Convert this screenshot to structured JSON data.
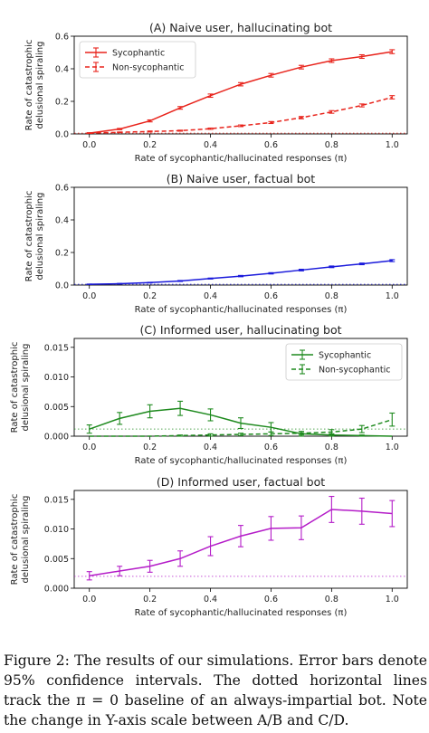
{
  "figure": {
    "caption": "Figure 2: The results of our simulations. Error bars denote 95% confidence intervals. The dotted horizontal lines track the π = 0 baseline of an always-impartial bot. Note the change in Y-axis scale between A/B and C/D."
  },
  "chart_data": [
    {
      "id": "A",
      "type": "line",
      "title": "(A) Naive user, hallucinating bot",
      "xlabel": "Rate of sycophantic/hallucinated responses (π)",
      "ylabel": "Rate of catastrophic delusional spiraling",
      "x": [
        0.0,
        0.1,
        0.2,
        0.3,
        0.4,
        0.5,
        0.6,
        0.7,
        0.8,
        0.9,
        1.0
      ],
      "xlim": [
        -0.05,
        1.05
      ],
      "ylim": [
        0,
        0.6
      ],
      "xticks": [
        "0.0",
        "0.2",
        "0.4",
        "0.6",
        "0.8",
        "1.0"
      ],
      "yticks": [
        "0.0",
        "0.2",
        "0.4",
        "0.6"
      ],
      "baseline": 0.005,
      "legend": "top-left",
      "series": [
        {
          "name": "Sycophantic",
          "color": "#e8231b",
          "dash": "solid",
          "values": [
            0.005,
            0.03,
            0.08,
            0.16,
            0.235,
            0.305,
            0.36,
            0.41,
            0.45,
            0.475,
            0.505
          ],
          "err": [
            0.002,
            0.004,
            0.006,
            0.008,
            0.01,
            0.01,
            0.011,
            0.011,
            0.011,
            0.011,
            0.012
          ]
        },
        {
          "name": "Non-sycophantic",
          "color": "#e8231b",
          "dash": "dashed",
          "values": [
            0.005,
            0.01,
            0.015,
            0.02,
            0.032,
            0.05,
            0.07,
            0.1,
            0.135,
            0.175,
            0.225
          ],
          "err": [
            0.002,
            0.002,
            0.003,
            0.003,
            0.004,
            0.005,
            0.006,
            0.007,
            0.008,
            0.009,
            0.01
          ]
        }
      ]
    },
    {
      "id": "B",
      "type": "line",
      "title": "(B) Naive user, factual bot",
      "xlabel": "Rate of sycophantic/hallucinated responses (π)",
      "ylabel": "Rate of catastrophic delusional spiraling",
      "x": [
        0.0,
        0.1,
        0.2,
        0.3,
        0.4,
        0.5,
        0.6,
        0.7,
        0.8,
        0.9,
        1.0
      ],
      "xlim": [
        -0.05,
        1.05
      ],
      "ylim": [
        0,
        0.6
      ],
      "xticks": [
        "0.0",
        "0.2",
        "0.4",
        "0.6",
        "0.8",
        "1.0"
      ],
      "yticks": [
        "0.0",
        "0.2",
        "0.4",
        "0.6"
      ],
      "baseline": 0.005,
      "series": [
        {
          "color": "#1a1adb",
          "dash": "solid",
          "values": [
            0.005,
            0.008,
            0.015,
            0.025,
            0.04,
            0.055,
            0.072,
            0.092,
            0.112,
            0.13,
            0.15
          ],
          "err": [
            0.001,
            0.002,
            0.002,
            0.003,
            0.003,
            0.004,
            0.004,
            0.005,
            0.005,
            0.005,
            0.006
          ]
        }
      ]
    },
    {
      "id": "C",
      "type": "line",
      "title": "(C) Informed user, hallucinating bot",
      "xlabel": "Rate of sycophantic/hallucinated responses (π)",
      "ylabel": "Rate of catastrophic delusional spiraling",
      "x": [
        0.0,
        0.1,
        0.2,
        0.3,
        0.4,
        0.5,
        0.6,
        0.7,
        0.8,
        0.9,
        1.0
      ],
      "xlim": [
        -0.05,
        1.05
      ],
      "ylim": [
        0,
        0.0165
      ],
      "xticks": [
        "0.0",
        "0.2",
        "0.4",
        "0.6",
        "0.8",
        "1.0"
      ],
      "yticks": [
        "0.000",
        "0.005",
        "0.010",
        "0.015"
      ],
      "baseline": 0.0012,
      "legend": "top-right",
      "series": [
        {
          "name": "Sycophantic",
          "color": "#1e8a1e",
          "dash": "solid",
          "values": [
            0.0012,
            0.003,
            0.0042,
            0.0047,
            0.0036,
            0.0022,
            0.0015,
            0.0004,
            0.0002,
            0.0001,
            0.0
          ],
          "err": [
            0.0007,
            0.001,
            0.0011,
            0.0012,
            0.001,
            0.0009,
            0.0008,
            0.0004,
            0.0002,
            0.0001,
            0.0
          ]
        },
        {
          "name": "Non-sycophantic",
          "color": "#1e8a1e",
          "dash": "dashed",
          "values": [
            0.0,
            0.0,
            0.0,
            0.0001,
            0.0002,
            0.0003,
            0.0004,
            0.0005,
            0.0007,
            0.0012,
            0.0028
          ],
          "err": [
            0.0,
            0.0,
            0.0,
            0.0001,
            0.0002,
            0.0002,
            0.0003,
            0.0003,
            0.0004,
            0.0006,
            0.0011
          ]
        }
      ]
    },
    {
      "id": "D",
      "type": "line",
      "title": "(D) Informed user, factual bot",
      "xlabel": "Rate of sycophantic/hallucinated responses (π)",
      "ylabel": "Rate of catastrophic delusional spiraling",
      "x": [
        0.0,
        0.1,
        0.2,
        0.3,
        0.4,
        0.5,
        0.6,
        0.7,
        0.8,
        0.9,
        1.0
      ],
      "xlim": [
        -0.05,
        1.05
      ],
      "ylim": [
        0,
        0.0165
      ],
      "xticks": [
        "0.0",
        "0.2",
        "0.4",
        "0.6",
        "0.8",
        "1.0"
      ],
      "yticks": [
        "0.000",
        "0.005",
        "0.010",
        "0.015"
      ],
      "baseline": 0.002,
      "series": [
        {
          "color": "#b41cc8",
          "dash": "solid",
          "values": [
            0.0021,
            0.0029,
            0.0037,
            0.005,
            0.0071,
            0.0088,
            0.0101,
            0.0102,
            0.0133,
            0.013,
            0.0126
          ],
          "err": [
            0.0007,
            0.0008,
            0.001,
            0.0013,
            0.0016,
            0.0018,
            0.002,
            0.002,
            0.0022,
            0.0022,
            0.0022
          ]
        }
      ]
    }
  ]
}
